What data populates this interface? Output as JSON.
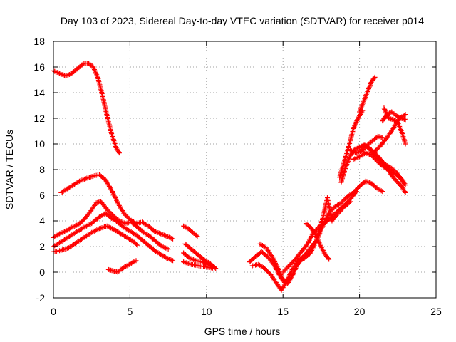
{
  "chart_data": {
    "type": "scatter",
    "title": "Day 103 of 2023, Sidereal Day-to-day VTEC variation (SDTVAR) for receiver p014",
    "xlabel": "GPS time / hours",
    "ylabel": "SDTVAR / TECUs",
    "xlim": [
      0,
      25
    ],
    "ylim": [
      -2,
      18
    ],
    "x_ticks": [
      0,
      5,
      10,
      15,
      20,
      25
    ],
    "y_ticks": [
      -2,
      0,
      2,
      4,
      6,
      8,
      10,
      12,
      14,
      16,
      18
    ],
    "grid": true,
    "legend": "none",
    "marker": "+",
    "color": "#ff0000",
    "series": [
      {
        "points": [
          [
            0,
            15.7
          ],
          [
            0.4,
            15.5
          ],
          [
            0.8,
            15.3
          ],
          [
            1.2,
            15.5
          ],
          [
            1.6,
            15.9
          ],
          [
            2.0,
            16.3
          ],
          [
            2.3,
            16.3
          ],
          [
            2.6,
            16.0
          ],
          [
            2.9,
            15.2
          ],
          [
            3.2,
            13.8
          ],
          [
            3.5,
            12.2
          ],
          [
            3.8,
            10.8
          ],
          [
            4.1,
            9.7
          ],
          [
            4.3,
            9.3
          ]
        ]
      },
      {
        "points": [
          [
            0.5,
            6.2
          ],
          [
            0.9,
            6.5
          ],
          [
            1.3,
            6.8
          ],
          [
            1.7,
            7.1
          ],
          [
            2.1,
            7.3
          ],
          [
            2.6,
            7.5
          ],
          [
            3.0,
            7.6
          ],
          [
            3.4,
            7.2
          ],
          [
            3.8,
            6.4
          ],
          [
            4.2,
            5.4
          ],
          [
            4.6,
            4.6
          ],
          [
            5.0,
            4.1
          ],
          [
            5.4,
            3.8
          ],
          [
            5.8,
            3.9
          ],
          [
            6.2,
            3.6
          ],
          [
            6.6,
            3.2
          ],
          [
            7.0,
            3.0
          ],
          [
            7.4,
            2.8
          ],
          [
            7.8,
            2.6
          ]
        ]
      },
      {
        "points": [
          [
            0,
            2.7
          ],
          [
            0.4,
            3.0
          ],
          [
            0.8,
            3.2
          ],
          [
            1.2,
            3.5
          ],
          [
            1.6,
            3.7
          ],
          [
            2.0,
            4.1
          ],
          [
            2.4,
            4.7
          ],
          [
            2.8,
            5.4
          ],
          [
            3.1,
            5.5
          ],
          [
            3.5,
            4.9
          ],
          [
            3.9,
            4.4
          ],
          [
            4.3,
            4.0
          ],
          [
            4.7,
            3.8
          ],
          [
            5.1,
            3.9
          ],
          [
            5.5,
            3.5
          ],
          [
            5.9,
            3.1
          ],
          [
            6.3,
            2.8
          ],
          [
            6.7,
            2.4
          ],
          [
            7.1,
            2.0
          ],
          [
            7.5,
            1.8
          ]
        ]
      },
      {
        "points": [
          [
            0,
            2.0
          ],
          [
            0.4,
            2.3
          ],
          [
            0.8,
            2.6
          ],
          [
            1.2,
            2.9
          ],
          [
            1.6,
            3.2
          ],
          [
            2.0,
            3.5
          ],
          [
            2.5,
            3.8
          ],
          [
            3.0,
            4.3
          ],
          [
            3.4,
            4.6
          ],
          [
            3.8,
            4.2
          ],
          [
            4.2,
            3.9
          ],
          [
            4.6,
            3.5
          ],
          [
            5.0,
            3.2
          ],
          [
            5.4,
            2.9
          ],
          [
            5.8,
            2.5
          ],
          [
            6.2,
            2.1
          ],
          [
            6.6,
            1.7
          ],
          [
            7.0,
            1.4
          ],
          [
            7.4,
            1.1
          ],
          [
            7.8,
            0.9
          ]
        ]
      },
      {
        "points": [
          [
            0,
            1.6
          ],
          [
            0.5,
            1.7
          ],
          [
            1.0,
            1.9
          ],
          [
            1.5,
            2.3
          ],
          [
            2.0,
            2.7
          ],
          [
            2.5,
            3.1
          ],
          [
            3.0,
            3.4
          ],
          [
            3.5,
            3.6
          ],
          [
            4.0,
            3.3
          ],
          [
            4.4,
            3.0
          ],
          [
            4.8,
            2.7
          ],
          [
            5.2,
            2.4
          ],
          [
            5.5,
            2.1
          ]
        ]
      },
      {
        "points": [
          [
            3.6,
            0.2
          ],
          [
            3.9,
            0.1
          ],
          [
            4.2,
            0.0
          ],
          [
            4.5,
            0.3
          ],
          [
            4.8,
            0.5
          ],
          [
            5.1,
            0.7
          ],
          [
            5.4,
            0.9
          ]
        ]
      },
      {
        "points": [
          [
            8.5,
            3.6
          ],
          [
            8.8,
            3.4
          ],
          [
            9.1,
            3.1
          ],
          [
            9.4,
            2.8
          ]
        ]
      },
      {
        "points": [
          [
            8.5,
            1.5
          ],
          [
            8.9,
            1.1
          ],
          [
            9.3,
            0.9
          ],
          [
            9.7,
            0.8
          ],
          [
            10.1,
            0.6
          ],
          [
            10.5,
            0.4
          ]
        ]
      },
      {
        "points": [
          [
            8.6,
            2.2
          ],
          [
            9.0,
            1.8
          ],
          [
            9.4,
            1.4
          ],
          [
            9.8,
            1.0
          ],
          [
            10.2,
            0.7
          ],
          [
            10.6,
            0.3
          ]
        ]
      },
      {
        "points": [
          [
            8.5,
            0.8
          ],
          [
            9.0,
            0.6
          ],
          [
            9.5,
            0.5
          ],
          [
            10.0,
            0.4
          ],
          [
            10.5,
            0.3
          ]
        ]
      },
      {
        "points": [
          [
            12.8,
            0.8
          ],
          [
            13.2,
            1.2
          ],
          [
            13.6,
            1.6
          ],
          [
            14.0,
            1.2
          ],
          [
            14.4,
            0.6
          ],
          [
            14.8,
            -0.3
          ],
          [
            15.1,
            -0.8
          ],
          [
            15.4,
            -0.5
          ]
        ]
      },
      {
        "points": [
          [
            13.5,
            2.2
          ],
          [
            13.9,
            1.9
          ],
          [
            14.3,
            1.2
          ],
          [
            14.7,
            0.2
          ],
          [
            15.0,
            -0.6
          ],
          [
            15.3,
            -0.9
          ],
          [
            15.6,
            -0.3
          ],
          [
            15.9,
            0.5
          ],
          [
            16.2,
            1.0
          ]
        ]
      },
      {
        "points": [
          [
            13.0,
            0.5
          ],
          [
            13.4,
            0.6
          ],
          [
            13.8,
            0.3
          ],
          [
            14.2,
            -0.2
          ],
          [
            14.6,
            -0.9
          ],
          [
            14.9,
            -1.4
          ],
          [
            15.2,
            -0.8
          ],
          [
            15.6,
            0.2
          ],
          [
            16.0,
            0.9
          ],
          [
            16.4,
            1.3
          ],
          [
            16.8,
            1.9
          ],
          [
            17.2,
            2.5
          ],
          [
            17.6,
            3.6
          ],
          [
            18.0,
            4.6
          ],
          [
            18.4,
            5.1
          ],
          [
            18.8,
            5.4
          ],
          [
            19.2,
            5.9
          ],
          [
            19.6,
            6.2
          ],
          [
            20.0,
            6.7
          ],
          [
            20.4,
            7.1
          ],
          [
            20.8,
            6.9
          ],
          [
            21.2,
            6.5
          ],
          [
            21.5,
            6.3
          ]
        ]
      },
      {
        "points": [
          [
            15.0,
            0.0
          ],
          [
            15.4,
            0.5
          ],
          [
            15.8,
            1.0
          ],
          [
            16.2,
            1.6
          ],
          [
            16.6,
            2.2
          ],
          [
            17.0,
            3.1
          ],
          [
            17.4,
            3.6
          ],
          [
            17.8,
            3.9
          ],
          [
            18.2,
            4.3
          ],
          [
            18.6,
            4.8
          ],
          [
            19.0,
            5.2
          ],
          [
            19.4,
            5.7
          ],
          [
            19.8,
            6.3
          ]
        ]
      },
      {
        "points": [
          [
            16.0,
            0.8
          ],
          [
            16.4,
            1.1
          ],
          [
            16.8,
            1.5
          ],
          [
            17.2,
            2.5
          ],
          [
            17.6,
            4.2
          ],
          [
            17.9,
            5.8
          ],
          [
            18.2,
            4.0
          ],
          [
            18.6,
            4.6
          ],
          [
            19.0,
            5.1
          ],
          [
            19.4,
            5.5
          ]
        ]
      },
      {
        "points": [
          [
            16.5,
            3.8
          ],
          [
            16.8,
            3.5
          ],
          [
            17.1,
            3.0
          ],
          [
            17.4,
            2.2
          ],
          [
            17.7,
            1.5
          ],
          [
            18.0,
            1.0
          ]
        ]
      },
      {
        "points": [
          [
            18.8,
            7.0
          ],
          [
            19.1,
            8.2
          ],
          [
            19.4,
            9.1
          ],
          [
            19.7,
            9.6
          ],
          [
            20.0,
            9.7
          ],
          [
            20.3,
            9.9
          ],
          [
            20.6,
            9.7
          ],
          [
            20.9,
            9.2
          ],
          [
            21.2,
            8.9
          ],
          [
            21.5,
            8.6
          ],
          [
            21.8,
            8.3
          ],
          [
            22.1,
            8.1
          ],
          [
            22.4,
            7.8
          ],
          [
            22.7,
            7.3
          ],
          [
            22.9,
            6.9
          ]
        ]
      },
      {
        "points": [
          [
            19.4,
            9.5
          ],
          [
            19.8,
            9.3
          ],
          [
            20.2,
            9.5
          ],
          [
            20.6,
            10.0
          ],
          [
            20.9,
            10.3
          ],
          [
            21.2,
            10.6
          ],
          [
            21.5,
            10.5
          ]
        ]
      },
      {
        "points": [
          [
            19.6,
            8.8
          ],
          [
            20.0,
            9.0
          ],
          [
            20.4,
            9.3
          ],
          [
            20.8,
            9.1
          ],
          [
            21.2,
            8.6
          ],
          [
            21.6,
            8.2
          ],
          [
            22.0,
            7.9
          ],
          [
            22.4,
            7.6
          ],
          [
            22.8,
            7.2
          ],
          [
            23.0,
            6.8
          ]
        ]
      },
      {
        "points": [
          [
            20.1,
            9.8
          ],
          [
            20.4,
            9.9
          ],
          [
            20.7,
            9.6
          ],
          [
            21.0,
            9.3
          ],
          [
            21.3,
            8.9
          ],
          [
            21.6,
            8.4
          ],
          [
            21.9,
            7.9
          ],
          [
            22.2,
            7.4
          ],
          [
            22.5,
            7.0
          ],
          [
            22.8,
            6.6
          ],
          [
            23.0,
            6.2
          ]
        ]
      },
      {
        "points": [
          [
            20.0,
            12.5
          ],
          [
            20.3,
            13.4
          ],
          [
            20.6,
            14.3
          ],
          [
            20.8,
            14.9
          ],
          [
            21.0,
            15.2
          ]
        ]
      },
      {
        "points": [
          [
            18.7,
            7.4
          ],
          [
            19.0,
            8.6
          ],
          [
            19.3,
            9.8
          ],
          [
            19.6,
            11.2
          ],
          [
            19.9,
            12.0
          ],
          [
            20.2,
            12.6
          ]
        ]
      },
      {
        "points": [
          [
            21.5,
            11.8
          ],
          [
            21.8,
            12.3
          ],
          [
            22.1,
            12.5
          ],
          [
            22.4,
            12.2
          ],
          [
            22.7,
            12.0
          ],
          [
            23.0,
            11.9
          ]
        ]
      },
      {
        "points": [
          [
            21.6,
            12.8
          ],
          [
            21.9,
            12.0
          ],
          [
            22.2,
            11.9
          ],
          [
            22.5,
            11.7
          ],
          [
            22.8,
            10.8
          ],
          [
            23.0,
            10.0
          ]
        ]
      },
      {
        "points": [
          [
            21.0,
            9.4
          ],
          [
            21.4,
            9.9
          ],
          [
            21.8,
            10.5
          ],
          [
            22.2,
            11.2
          ],
          [
            22.6,
            12.0
          ],
          [
            23.0,
            12.3
          ]
        ]
      }
    ]
  }
}
